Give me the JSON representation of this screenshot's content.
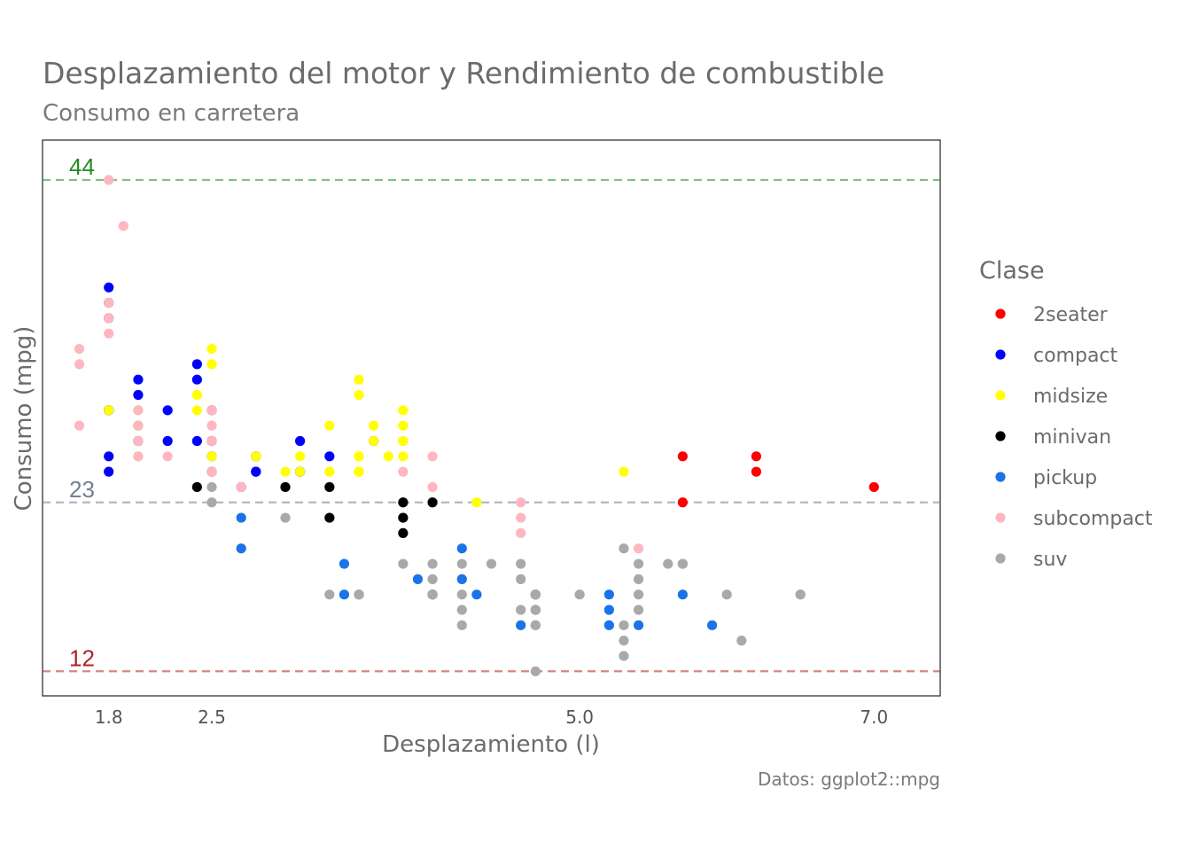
{
  "chart_data": {
    "type": "scatter",
    "title": "Desplazamiento del motor y Rendimiento de combustible",
    "subtitle": "Consumo en carretera",
    "xlabel": "Desplazamiento (l)",
    "ylabel": "Consumo (mpg)",
    "caption": "Datos: ggplot2::mpg",
    "xlim": [
      1.35,
      7.45
    ],
    "ylim": [
      10.4,
      46.6
    ],
    "x_ticks": [
      {
        "value": 1.8,
        "label": "1.8"
      },
      {
        "value": 2.5,
        "label": "2.5"
      },
      {
        "value": 5.0,
        "label": "5.0"
      },
      {
        "value": 7.0,
        "label": "7.0"
      }
    ],
    "grid": false,
    "reference_lines": [
      {
        "value": 44,
        "label": "44",
        "color": "#228B22"
      },
      {
        "value": 23,
        "label": "23",
        "color": "#708090"
      },
      {
        "value": 12,
        "label": "12",
        "color": "#B22222"
      }
    ],
    "legend": {
      "title": "Clase",
      "position": "right"
    },
    "series": [
      {
        "name": "2seater",
        "color": "#FF0000",
        "points": [
          [
            5.7,
            26
          ],
          [
            5.7,
            23
          ],
          [
            6.2,
            26
          ],
          [
            6.2,
            25
          ],
          [
            7.0,
            24
          ]
        ]
      },
      {
        "name": "compact",
        "color": "#0000FF",
        "points": [
          [
            1.8,
            29
          ],
          [
            1.8,
            29
          ],
          [
            2.0,
            31
          ],
          [
            2.0,
            30
          ],
          [
            2.8,
            26
          ],
          [
            2.8,
            26
          ],
          [
            3.1,
            27
          ],
          [
            1.8,
            26
          ],
          [
            1.8,
            25
          ],
          [
            2.0,
            28
          ],
          [
            2.0,
            27
          ],
          [
            2.8,
            25
          ],
          [
            2.8,
            25
          ],
          [
            3.1,
            25
          ],
          [
            3.1,
            25
          ],
          [
            1.8,
            36
          ],
          [
            1.8,
            35
          ],
          [
            1.8,
            37
          ],
          [
            2.2,
            29
          ],
          [
            2.2,
            27
          ],
          [
            2.4,
            31
          ],
          [
            2.4,
            32
          ],
          [
            2.4,
            27
          ],
          [
            2.5,
            29
          ],
          [
            2.5,
            27
          ],
          [
            2.5,
            26
          ],
          [
            2.5,
            25
          ],
          [
            2.7,
            24
          ],
          [
            3.6,
            27
          ],
          [
            3.3,
            26
          ]
        ]
      },
      {
        "name": "midsize",
        "color": "#FFFF00",
        "points": [
          [
            2.4,
            30
          ],
          [
            2.4,
            29
          ],
          [
            2.5,
            33
          ],
          [
            2.5,
            32
          ],
          [
            2.5,
            26
          ],
          [
            2.8,
            26
          ],
          [
            3.0,
            25
          ],
          [
            3.1,
            26
          ],
          [
            3.1,
            25
          ],
          [
            3.5,
            26
          ],
          [
            3.5,
            25
          ],
          [
            3.8,
            29
          ],
          [
            3.8,
            27
          ],
          [
            3.6,
            28
          ],
          [
            3.6,
            27
          ],
          [
            3.5,
            26
          ],
          [
            3.5,
            25
          ],
          [
            3.8,
            26
          ],
          [
            3.8,
            28
          ],
          [
            3.3,
            28
          ],
          [
            3.5,
            31
          ],
          [
            3.5,
            30
          ],
          [
            4.3,
            23
          ],
          [
            5.3,
            25
          ],
          [
            1.8,
            29
          ],
          [
            2.0,
            29
          ],
          [
            2.0,
            28
          ],
          [
            2.0,
            26
          ],
          [
            2.8,
            26
          ],
          [
            3.3,
            25
          ],
          [
            3.7,
            26
          ]
        ]
      },
      {
        "name": "minivan",
        "color": "#000000",
        "points": [
          [
            2.4,
            24
          ],
          [
            3.0,
            24
          ],
          [
            3.3,
            22
          ],
          [
            3.3,
            24
          ],
          [
            3.8,
            23
          ],
          [
            3.8,
            22
          ],
          [
            3.8,
            21
          ],
          [
            4.0,
            23
          ]
        ]
      },
      {
        "name": "pickup",
        "color": "#1A73E8",
        "points": [
          [
            2.7,
            22
          ],
          [
            2.7,
            20
          ],
          [
            3.4,
            19
          ],
          [
            3.4,
            17
          ],
          [
            3.9,
            18
          ],
          [
            4.7,
            17
          ],
          [
            4.7,
            16
          ],
          [
            4.7,
            17
          ],
          [
            5.2,
            16
          ],
          [
            5.2,
            15
          ],
          [
            5.7,
            17
          ],
          [
            5.9,
            15
          ],
          [
            4.6,
            15
          ],
          [
            4.7,
            17
          ],
          [
            5.2,
            17
          ],
          [
            5.4,
            15
          ],
          [
            4.0,
            17
          ],
          [
            3.5,
            17
          ],
          [
            4.2,
            18
          ],
          [
            4.2,
            20
          ],
          [
            4.0,
            17
          ],
          [
            4.3,
            17
          ]
        ]
      },
      {
        "name": "subcompact",
        "color": "#FFB6C1",
        "points": [
          [
            1.6,
            28
          ],
          [
            1.6,
            32
          ],
          [
            1.6,
            33
          ],
          [
            1.8,
            44
          ],
          [
            1.9,
            41
          ],
          [
            1.8,
            35
          ],
          [
            1.8,
            36
          ],
          [
            2.0,
            26
          ],
          [
            2.0,
            28
          ],
          [
            2.0,
            27
          ],
          [
            2.2,
            26
          ],
          [
            2.5,
            25
          ],
          [
            2.5,
            27
          ],
          [
            2.5,
            29
          ],
          [
            2.7,
            24
          ],
          [
            3.8,
            25
          ],
          [
            4.0,
            24
          ],
          [
            4.0,
            26
          ],
          [
            4.6,
            23
          ],
          [
            4.6,
            22
          ],
          [
            4.6,
            21
          ],
          [
            5.4,
            20
          ],
          [
            1.8,
            34
          ],
          [
            2.0,
            29
          ],
          [
            2.5,
            28
          ]
        ]
      },
      {
        "name": "suv",
        "color": "#A9A9A9",
        "points": [
          [
            4.0,
            17
          ],
          [
            4.7,
            15
          ],
          [
            4.7,
            16
          ],
          [
            4.7,
            17
          ],
          [
            5.7,
            19
          ],
          [
            6.1,
            14
          ],
          [
            6.5,
            17
          ],
          [
            5.3,
            14
          ],
          [
            5.3,
            15
          ],
          [
            5.7,
            19
          ],
          [
            6.0,
            17
          ],
          [
            5.3,
            20
          ],
          [
            5.7,
            19
          ],
          [
            2.5,
            23
          ],
          [
            2.5,
            24
          ],
          [
            3.0,
            22
          ],
          [
            3.3,
            17
          ],
          [
            3.8,
            19
          ],
          [
            4.0,
            19
          ],
          [
            4.2,
            15
          ],
          [
            4.6,
            18
          ],
          [
            4.6,
            19
          ],
          [
            4.7,
            12
          ],
          [
            5.0,
            17
          ],
          [
            5.4,
            17
          ],
          [
            5.4,
            18
          ],
          [
            5.4,
            19
          ],
          [
            5.6,
            19
          ],
          [
            6.5,
            17
          ],
          [
            4.2,
            19
          ],
          [
            4.4,
            19
          ],
          [
            4.7,
            17
          ],
          [
            4.7,
            16
          ],
          [
            4.0,
            18
          ],
          [
            4.2,
            16
          ],
          [
            5.3,
            13
          ],
          [
            5.4,
            16
          ],
          [
            4.6,
            16
          ],
          [
            4.7,
            15
          ],
          [
            3.5,
            17
          ],
          [
            4.2,
            17
          ]
        ]
      }
    ]
  }
}
